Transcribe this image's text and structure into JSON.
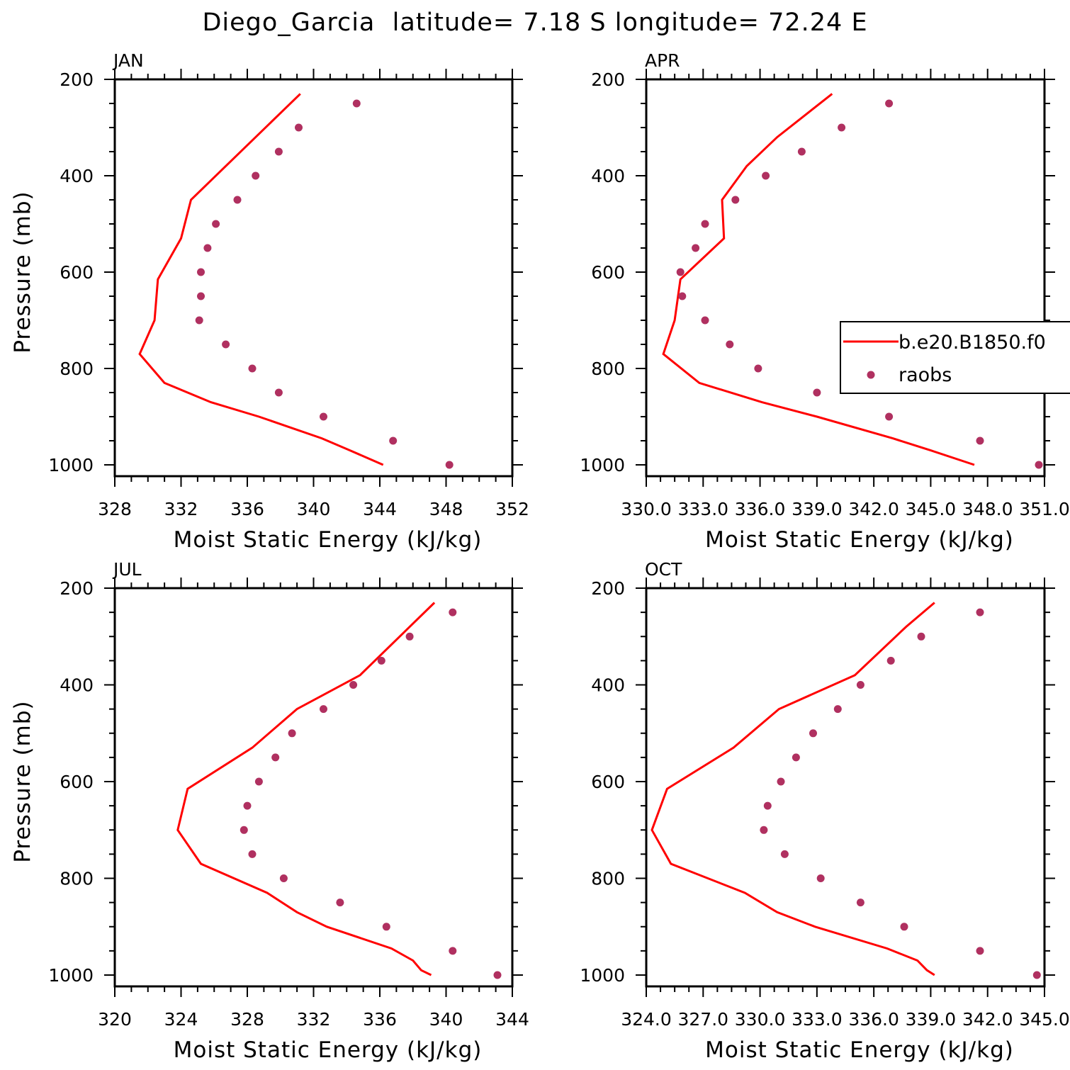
{
  "figure": {
    "title": "Diego_Garcia  latitude= 7.18 S longitude= 72.24 E"
  },
  "colors": {
    "model_line": "#ff0000",
    "obs_marker": "#b03060",
    "axis": "#000000"
  },
  "legend": {
    "model_label": "b.e20.B1850.f0",
    "obs_label": "raobs",
    "placement": "right of APR panel"
  },
  "chart_data": [
    {
      "type": "line",
      "panel": "JAN",
      "xlabel": "Moist Static Energy (kJ/kg)",
      "ylabel": "Pressure (mb)",
      "xlim": [
        328,
        352
      ],
      "x_ticks": [
        328,
        332,
        336,
        340,
        344,
        348,
        352
      ],
      "x_tick_labels": [
        "328",
        "332",
        "336",
        "340",
        "344",
        "348",
        "352"
      ],
      "ylim": [
        200,
        1000
      ],
      "y_reversed": true,
      "y_ticks": [
        200,
        400,
        600,
        800,
        1000
      ],
      "y_tick_labels": [
        "200",
        "400",
        "600",
        "800",
        "1000"
      ],
      "show_ylabel": true,
      "series": [
        {
          "name": "b.e20.B1850.f0",
          "kind": "line",
          "pressure": [
            230,
            450,
            530,
            615,
            700,
            770,
            830,
            870,
            900,
            945,
            970,
            1000
          ],
          "values": [
            339.2,
            332.6,
            332.0,
            330.6,
            330.4,
            329.5,
            331.0,
            333.8,
            336.7,
            340.5,
            342.2,
            344.2
          ]
        },
        {
          "name": "raobs",
          "kind": "scatter",
          "pressure": [
            250,
            300,
            350,
            400,
            450,
            500,
            550,
            600,
            650,
            700,
            750,
            800,
            850,
            900,
            950,
            1000
          ],
          "values": [
            342.6,
            339.1,
            337.9,
            336.5,
            335.4,
            334.1,
            333.6,
            333.2,
            333.2,
            333.1,
            334.7,
            336.3,
            337.9,
            340.6,
            344.8,
            348.2
          ]
        }
      ]
    },
    {
      "type": "line",
      "panel": "APR",
      "xlabel": "Moist Static Energy (kJ/kg)",
      "ylabel": "",
      "xlim": [
        330.0,
        351.0
      ],
      "x_ticks": [
        330.0,
        333.0,
        336.0,
        339.0,
        342.0,
        345.0,
        348.0,
        351.0
      ],
      "x_tick_labels": [
        "330.0",
        "333.0",
        "336.0",
        "339.0",
        "342.0",
        "345.0",
        "348.0",
        "351.0"
      ],
      "ylim": [
        200,
        1000
      ],
      "y_reversed": true,
      "y_ticks": [
        200,
        400,
        600,
        800,
        1000
      ],
      "y_tick_labels": [
        "200",
        "400",
        "600",
        "800",
        "1000"
      ],
      "show_ylabel": false,
      "series": [
        {
          "name": "b.e20.B1850.f0",
          "kind": "line",
          "pressure": [
            230,
            320,
            380,
            450,
            530,
            615,
            700,
            770,
            830,
            870,
            900,
            945,
            970,
            1000
          ],
          "values": [
            339.8,
            336.9,
            335.3,
            334.0,
            334.1,
            331.8,
            331.5,
            330.9,
            332.8,
            336.1,
            339.0,
            343.0,
            345.0,
            347.3
          ]
        },
        {
          "name": "raobs",
          "kind": "scatter",
          "pressure": [
            250,
            300,
            350,
            400,
            450,
            500,
            550,
            600,
            650,
            700,
            750,
            800,
            850,
            900,
            950,
            1000
          ],
          "values": [
            342.8,
            340.3,
            338.2,
            336.3,
            334.7,
            333.1,
            332.6,
            331.8,
            331.9,
            333.1,
            334.4,
            335.9,
            339.0,
            342.8,
            347.6,
            350.7
          ]
        }
      ]
    },
    {
      "type": "line",
      "panel": "JUL",
      "xlabel": "Moist Static Energy (kJ/kg)",
      "ylabel": "Pressure (mb)",
      "xlim": [
        320,
        344
      ],
      "x_ticks": [
        320,
        324,
        328,
        332,
        336,
        340,
        344
      ],
      "x_tick_labels": [
        "320",
        "324",
        "328",
        "332",
        "336",
        "340",
        "344"
      ],
      "ylim": [
        200,
        1000
      ],
      "y_reversed": true,
      "y_ticks": [
        200,
        400,
        600,
        800,
        1000
      ],
      "y_tick_labels": [
        "200",
        "400",
        "600",
        "800",
        "1000"
      ],
      "show_ylabel": true,
      "series": [
        {
          "name": "b.e20.B1850.f0",
          "kind": "line",
          "pressure": [
            230,
            280,
            380,
            450,
            530,
            615,
            700,
            770,
            830,
            870,
            900,
            945,
            970,
            990,
            1000
          ],
          "values": [
            339.3,
            337.8,
            334.8,
            331.0,
            328.3,
            324.4,
            323.8,
            325.2,
            329.2,
            331.0,
            332.8,
            336.7,
            338.0,
            338.5,
            339.1
          ]
        },
        {
          "name": "raobs",
          "kind": "scatter",
          "pressure": [
            250,
            300,
            350,
            400,
            450,
            500,
            550,
            600,
            650,
            700,
            750,
            800,
            850,
            900,
            950,
            1000
          ],
          "values": [
            340.4,
            337.8,
            336.1,
            334.4,
            332.6,
            330.7,
            329.7,
            328.7,
            328.0,
            327.8,
            328.3,
            330.2,
            333.6,
            336.4,
            340.4,
            343.1
          ]
        }
      ]
    },
    {
      "type": "line",
      "panel": "OCT",
      "xlabel": "Moist Static Energy (kJ/kg)",
      "ylabel": "",
      "xlim": [
        324.0,
        345.0
      ],
      "x_ticks": [
        324.0,
        327.0,
        330.0,
        333.0,
        336.0,
        339.0,
        342.0,
        345.0
      ],
      "x_tick_labels": [
        "324.0",
        "327.0",
        "330.0",
        "333.0",
        "336.0",
        "339.0",
        "342.0",
        "345.0"
      ],
      "ylim": [
        200,
        1000
      ],
      "y_reversed": true,
      "y_ticks": [
        200,
        400,
        600,
        800,
        1000
      ],
      "y_tick_labels": [
        "200",
        "400",
        "600",
        "800",
        "1000"
      ],
      "show_ylabel": false,
      "series": [
        {
          "name": "b.e20.B1850.f0",
          "kind": "line",
          "pressure": [
            230,
            280,
            380,
            450,
            530,
            615,
            700,
            770,
            830,
            870,
            900,
            945,
            970,
            990,
            1000
          ],
          "values": [
            339.2,
            337.7,
            335.0,
            331.0,
            328.6,
            325.1,
            324.3,
            325.3,
            329.2,
            330.9,
            332.9,
            336.7,
            338.3,
            338.8,
            339.2
          ]
        },
        {
          "name": "raobs",
          "kind": "scatter",
          "pressure": [
            250,
            300,
            350,
            400,
            450,
            500,
            550,
            600,
            650,
            700,
            750,
            800,
            850,
            900,
            950,
            1000
          ],
          "values": [
            341.6,
            338.5,
            336.9,
            335.3,
            334.1,
            332.8,
            331.9,
            331.1,
            330.4,
            330.2,
            331.3,
            333.2,
            335.3,
            337.6,
            341.6,
            344.6
          ]
        }
      ]
    }
  ]
}
